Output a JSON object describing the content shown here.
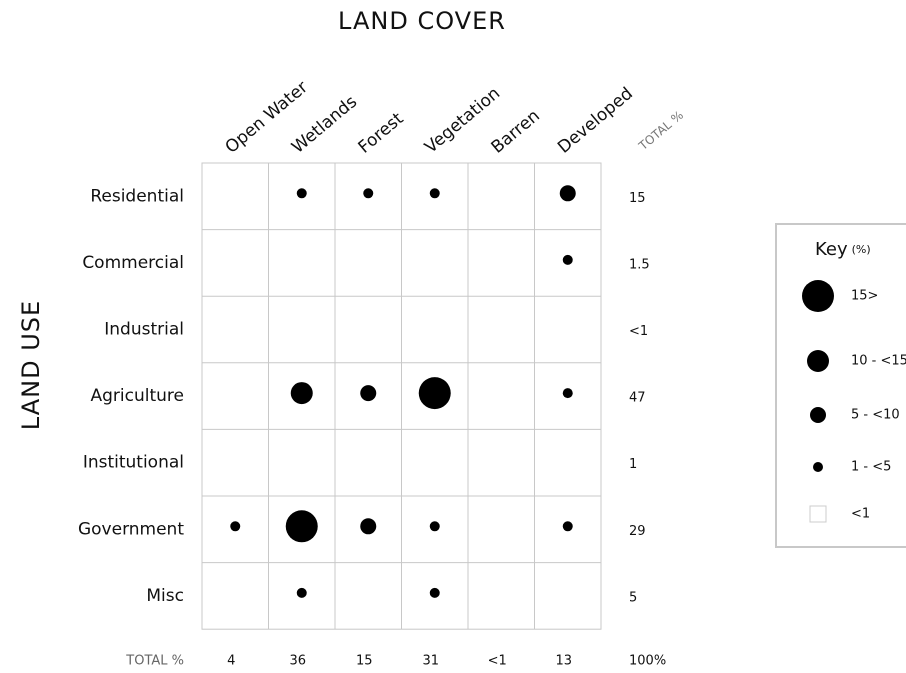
{
  "title": "LAND COVER",
  "y_title": "LAND USE",
  "columns": [
    "Open Water",
    "Wetlands",
    "Forest",
    "Vegetation",
    "Barren",
    "Developed"
  ],
  "total_header": "TOTAL %",
  "rows": [
    {
      "label": "Residential",
      "cells": [
        null,
        3,
        3,
        3,
        null,
        2
      ],
      "total": "15"
    },
    {
      "label": "Commercial",
      "cells": [
        null,
        null,
        null,
        null,
        null,
        3
      ],
      "total": "1.5"
    },
    {
      "label": "Industrial",
      "cells": [
        null,
        null,
        null,
        null,
        null,
        null
      ],
      "total": "<1"
    },
    {
      "label": "Agriculture",
      "cells": [
        null,
        1,
        2,
        0,
        null,
        3
      ],
      "total": "47"
    },
    {
      "label": "Institutional",
      "cells": [
        null,
        null,
        null,
        null,
        null,
        null
      ],
      "total": "1"
    },
    {
      "label": "Government",
      "cells": [
        3,
        0,
        2,
        3,
        null,
        3
      ],
      "total": "29"
    },
    {
      "label": "Misc",
      "cells": [
        null,
        3,
        null,
        3,
        null,
        null
      ],
      "total": "5"
    }
  ],
  "column_totals": [
    "4",
    "36",
    "15",
    "31",
    "<1",
    "13",
    "100%"
  ],
  "key": {
    "title": "Key",
    "unit": "(%)",
    "items": [
      "15>",
      "10 - <15",
      "5 - <10",
      "1 - <5",
      "<1"
    ]
  }
}
